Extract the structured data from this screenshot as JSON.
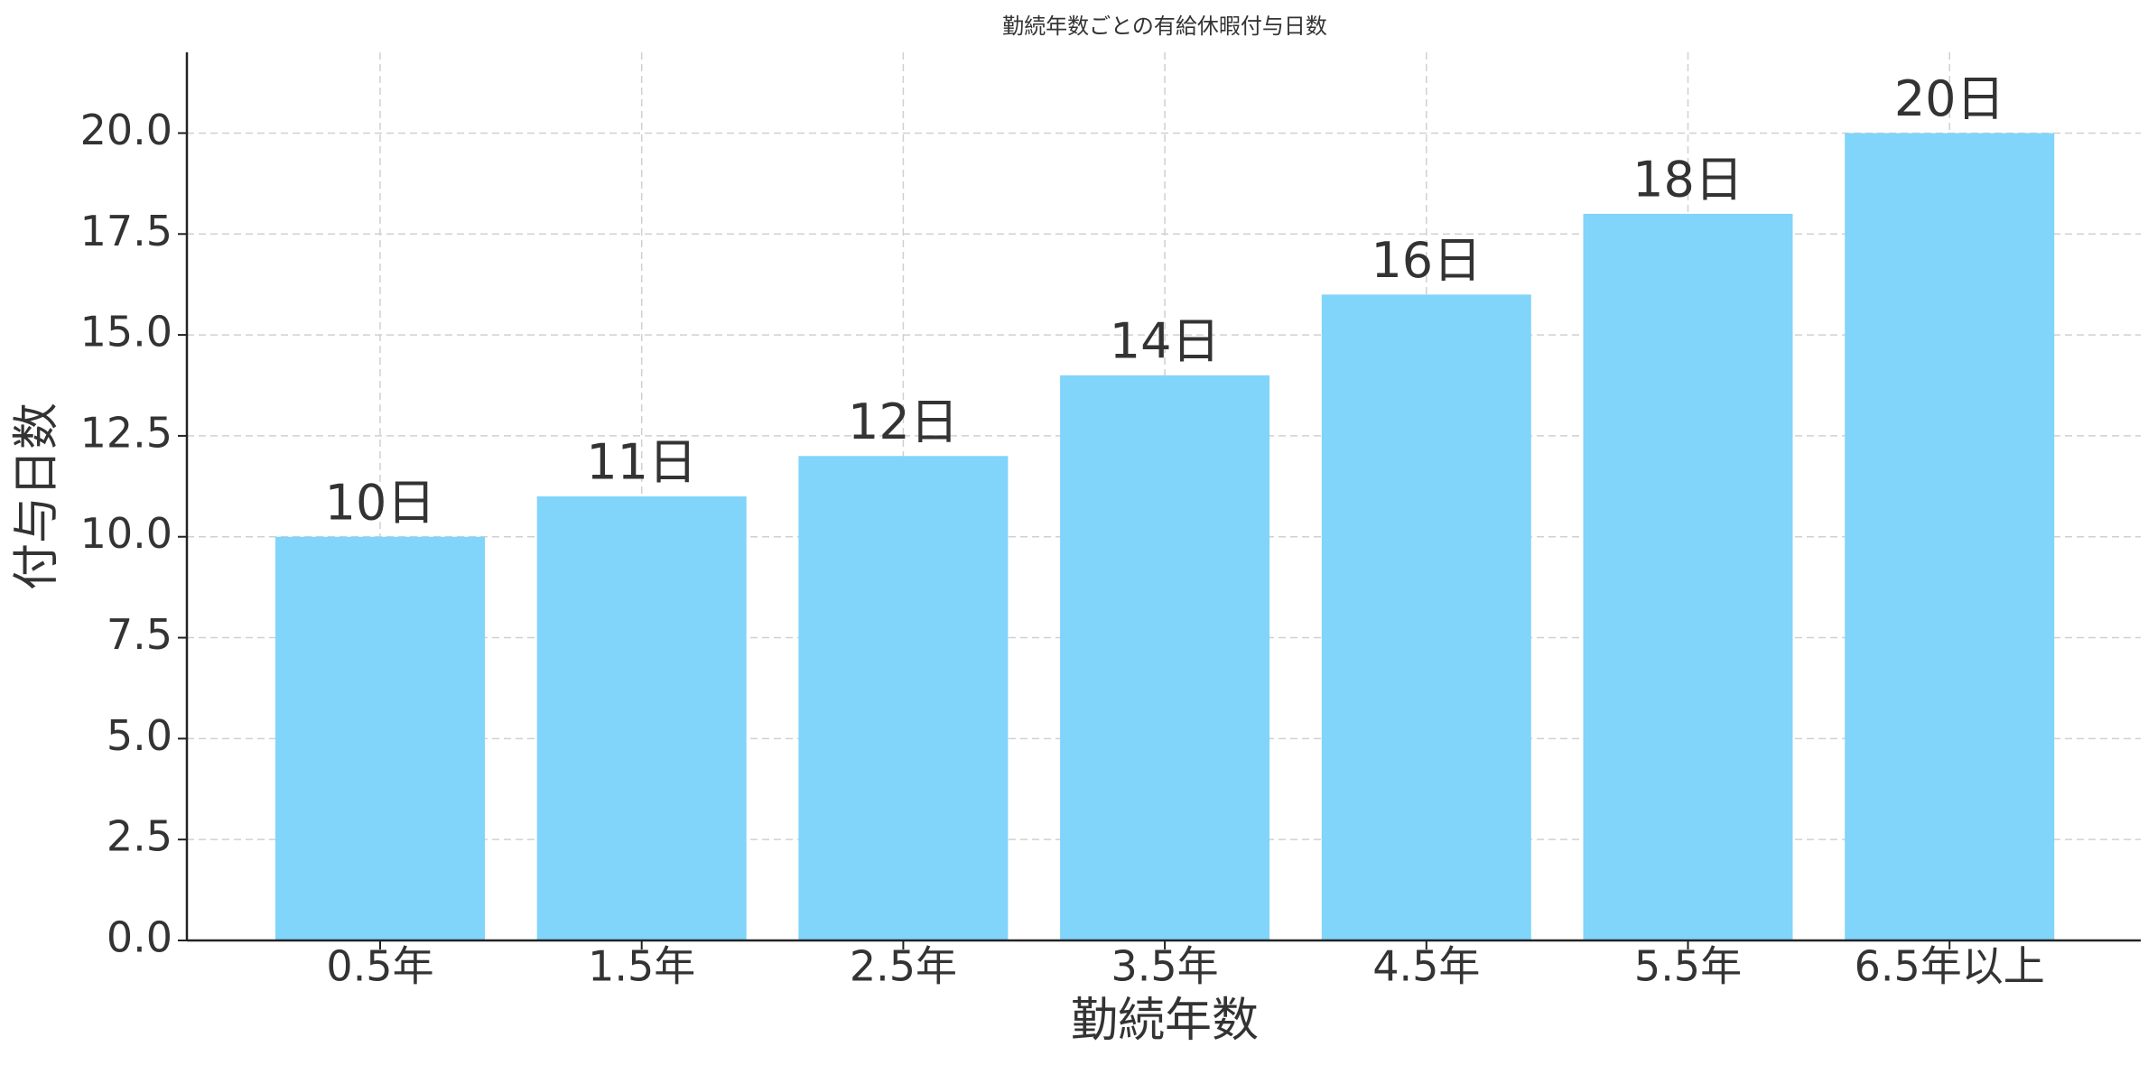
{
  "chart_data": {
    "type": "bar",
    "title": "勤続年数ごとの有給休暇付与日数",
    "x_label": "勤続年数",
    "y_label": "付与日数",
    "categories": [
      "0.5年",
      "1.5年",
      "2.5年",
      "3.5年",
      "4.5年",
      "5.5年",
      "6.5年以上"
    ],
    "values": [
      10,
      11,
      12,
      14,
      16,
      18,
      20
    ],
    "value_labels": [
      "10日",
      "11日",
      "12日",
      "14日",
      "16日",
      "18日",
      "20日"
    ],
    "color": "#81d4fa",
    "ylim": [
      0,
      22
    ],
    "yticks": [
      {
        "value": 0,
        "label": "0.0"
      },
      {
        "value": 2.5,
        "label": "2.5"
      },
      {
        "value": 5,
        "label": "5.0"
      },
      {
        "value": 7.5,
        "label": "7.5"
      },
      {
        "value": 10,
        "label": "10.0"
      },
      {
        "value": 12.5,
        "label": "12.5"
      },
      {
        "value": 15,
        "label": "15.0"
      },
      {
        "value": 17.5,
        "label": "17.5"
      },
      {
        "value": 20,
        "label": "20.0"
      }
    ],
    "grid": true
  }
}
